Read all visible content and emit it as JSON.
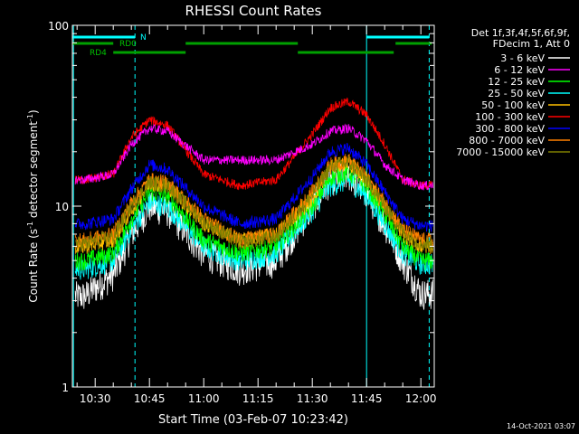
{
  "chart_data": {
    "type": "line",
    "title": "RHESSI Count Rates",
    "xlabel": "Start Time (03-Feb-07 10:23:42)",
    "ylabel": "Count Rate (s⁻¹ detector segment⁻¹)",
    "ylabel_parts": {
      "main": "Count Rate (s",
      "sup1": "-1",
      "mid": " detector segment",
      "sup2": "-1",
      "end": ")"
    },
    "yscale": "log",
    "ylim": [
      1,
      100
    ],
    "y_ticks": [
      "1",
      "10",
      "100"
    ],
    "x_ticks": [
      "10:30",
      "10:45",
      "11:00",
      "11:15",
      "11:30",
      "11:45",
      "12:00"
    ],
    "x_tick_minutes": [
      30,
      45,
      60,
      75,
      90,
      105,
      120
    ],
    "x_range_minutes": [
      23.7,
      123.7
    ],
    "legend_header": [
      "Det 1f,3f,4f,5f,6f,9f,",
      "FDecim 1, Att 0"
    ],
    "legend_position": "right",
    "grid": false,
    "timestamp": "14-Oct-2021 03:07",
    "flags": {
      "N": {
        "label": "N",
        "color": "#00ffff",
        "intervals": [
          [
            23.7,
            41.0
          ],
          [
            105.0,
            122.3
          ]
        ]
      },
      "RD0": {
        "label": "RD0",
        "color": "#00a000",
        "intervals": [
          [
            23.7,
            35.0
          ],
          [
            55.0,
            86.0
          ],
          [
            113.0,
            123.0
          ]
        ]
      },
      "RD4": {
        "label": "RD4",
        "color": "#00a000",
        "intervals": [
          [
            35.0,
            55.0
          ],
          [
            86.0,
            112.5
          ]
        ]
      }
    },
    "vertical_lines": {
      "solid": [
        24.0,
        105.0
      ],
      "dashed": [
        41.0,
        122.3
      ]
    },
    "x": [
      27,
      35,
      40,
      45,
      50,
      60,
      70,
      80,
      90,
      95,
      100,
      105,
      110,
      115,
      120
    ],
    "series": [
      {
        "name": "3 - 6 keV",
        "color": "#ffffff",
        "values": [
          3.2,
          4.2,
          7.0,
          10.0,
          9.5,
          5.5,
          4.5,
          5.0,
          10.0,
          14.0,
          15.0,
          12.0,
          8.0,
          5.0,
          3.3
        ]
      },
      {
        "name": "6 - 12 keV",
        "color": "#ff00ff",
        "values": [
          14,
          15,
          22,
          27,
          26,
          18,
          18,
          18,
          22,
          26,
          27,
          23,
          17,
          14,
          13
        ]
      },
      {
        "name": "12 - 25 keV",
        "color": "#00ff00",
        "values": [
          5.0,
          5.5,
          8.5,
          12.0,
          11.5,
          6.5,
          5.5,
          6.0,
          10.0,
          14.5,
          15.5,
          13.0,
          9.0,
          6.0,
          5.0
        ]
      },
      {
        "name": "25 - 50 keV",
        "color": "#00ffff",
        "values": [
          4.5,
          5.0,
          7.5,
          10.5,
          10.0,
          6.0,
          5.0,
          5.5,
          9.5,
          13.0,
          14.0,
          11.5,
          8.0,
          5.5,
          4.8
        ]
      },
      {
        "name": "50 - 100 keV",
        "color": "#ffc000",
        "values": [
          6.0,
          6.5,
          9.5,
          13.5,
          13.0,
          8.0,
          6.5,
          7.0,
          11.0,
          16.5,
          17.5,
          14.0,
          10.0,
          7.0,
          6.0
        ]
      },
      {
        "name": "100 - 300 keV",
        "color": "#ff0000",
        "values": [
          14,
          15,
          24,
          30,
          28,
          15,
          13,
          14,
          25,
          35,
          38,
          32,
          22,
          14,
          13
        ]
      },
      {
        "name": "300 - 800 keV",
        "color": "#0000ff",
        "values": [
          8.0,
          8.5,
          12.5,
          17.0,
          16.0,
          10.0,
          8.0,
          8.5,
          14.5,
          20.0,
          21.0,
          17.0,
          12.0,
          8.5,
          7.8
        ]
      },
      {
        "name": "800 - 7000 keV",
        "color": "#ff8000",
        "values": [
          6.5,
          7.0,
          10.5,
          14.0,
          13.5,
          8.5,
          6.5,
          7.0,
          12.0,
          17.0,
          18.0,
          14.5,
          10.5,
          7.5,
          6.5
        ]
      },
      {
        "name": "7000 - 15000 keV",
        "color": "#808000",
        "values": [
          6.2,
          6.8,
          10.0,
          13.5,
          13.0,
          8.2,
          6.3,
          6.8,
          11.5,
          16.5,
          17.5,
          14.0,
          10.0,
          7.2,
          6.2
        ]
      }
    ]
  }
}
